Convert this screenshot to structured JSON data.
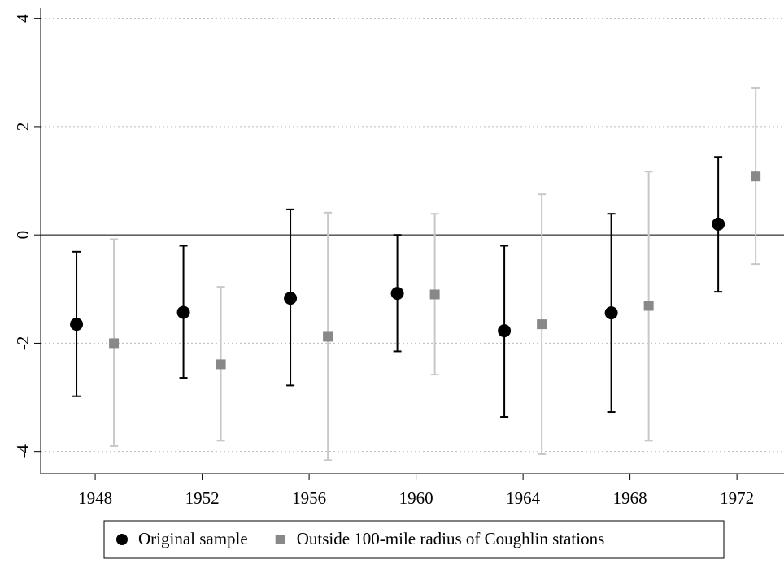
{
  "chart_data": {
    "type": "errorbar",
    "series": [
      {
        "name": "Original sample",
        "color": "#000000",
        "marker": "circle",
        "x": [
          1947.3,
          1951.3,
          1955.3,
          1959.3,
          1963.3,
          1967.3,
          1971.3
        ],
        "values": [
          -1.65,
          -1.43,
          -1.17,
          -1.08,
          -1.77,
          -1.44,
          0.2
        ],
        "lower": [
          -2.98,
          -2.64,
          -2.78,
          -2.15,
          -3.36,
          -3.27,
          -1.05
        ],
        "upper": [
          -0.31,
          -0.2,
          0.47,
          0.0,
          -0.2,
          0.39,
          1.44
        ],
        "bar_color": "#000000"
      },
      {
        "name": "Outside 100-mile radius of Coughlin stations",
        "color": "#888888",
        "marker": "square",
        "x": [
          1948.7,
          1952.7,
          1956.7,
          1960.7,
          1964.7,
          1968.7,
          1972.7
        ],
        "values": [
          -2.0,
          -2.39,
          -1.88,
          -1.1,
          -1.65,
          -1.31,
          1.08
        ],
        "lower": [
          -3.9,
          -3.8,
          -4.16,
          -2.58,
          -4.05,
          -3.8,
          -0.54
        ],
        "upper": [
          -0.08,
          -0.96,
          0.41,
          0.39,
          0.75,
          1.17,
          2.72
        ],
        "bar_color": "#c8c8c8"
      }
    ],
    "xlim": [
      1945.96,
      1973.76
    ],
    "xticks": [
      1948,
      1952,
      1956,
      1960,
      1964,
      1968,
      1972
    ],
    "ylim": [
      -4.41,
      4.19
    ],
    "yticks": [
      -4,
      -2,
      0,
      2,
      4
    ],
    "grid": true,
    "legend": "bottom"
  }
}
